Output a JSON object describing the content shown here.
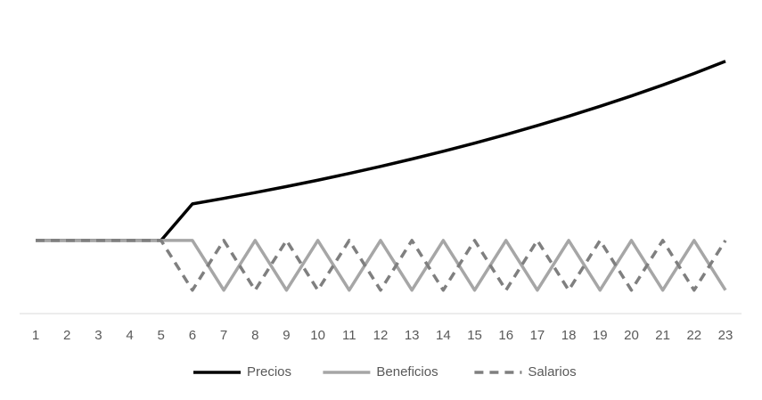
{
  "chart_data": {
    "type": "line",
    "categories": [
      "1",
      "2",
      "3",
      "4",
      "5",
      "6",
      "7",
      "8",
      "9",
      "10",
      "11",
      "12",
      "13",
      "14",
      "15",
      "16",
      "17",
      "18",
      "19",
      "20",
      "21",
      "22",
      "23"
    ],
    "ylim": [
      0,
      380
    ],
    "legend": "bottom",
    "series": [
      {
        "name": "Precios",
        "color": "#000000",
        "dashed": false,
        "values": [
          100,
          100,
          100,
          100,
          100,
          150,
          157.5,
          165.4,
          173.7,
          182.4,
          191.6,
          201.2,
          211.3,
          221.9,
          233,
          244.7,
          257,
          269.9,
          283.4,
          297.6,
          312.5,
          328.2,
          345
        ]
      },
      {
        "name": "Beneficios",
        "color": "#a6a6a6",
        "dashed": false,
        "values": [
          100,
          100,
          100,
          100,
          100,
          100,
          32,
          100,
          32,
          100,
          32,
          100,
          32,
          100,
          32,
          100,
          32,
          100,
          32,
          100,
          32,
          100,
          32
        ]
      },
      {
        "name": "Salarios",
        "color": "#7f7f7f",
        "dashed": true,
        "values": [
          100,
          100,
          100,
          100,
          100,
          32,
          100,
          32,
          100,
          32,
          100,
          32,
          100,
          32,
          100,
          32,
          100,
          32,
          100,
          32,
          100,
          32,
          100
        ]
      }
    ]
  }
}
